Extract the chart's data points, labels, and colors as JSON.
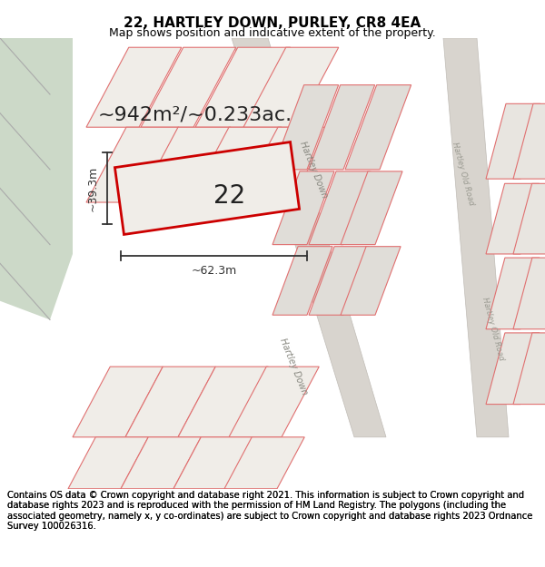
{
  "title": "22, HARTLEY DOWN, PURLEY, CR8 4EA",
  "subtitle": "Map shows position and indicative extent of the property.",
  "footer": "Contains OS data © Crown copyright and database right 2021. This information is subject to Crown copyright and database rights 2023 and is reproduced with the permission of HM Land Registry. The polygons (including the associated geometry, namely x, y co-ordinates) are subject to Crown copyright and database rights 2023 Ordnance Survey 100026316.",
  "area_label": "~942m²/~0.233ac.",
  "width_label": "~62.3m",
  "height_label": "~39.3m",
  "plot_number": "22",
  "map_bg": "#f0ede8",
  "plot_line_color": "#cc0000",
  "parcel_line_color": "#e07070",
  "green_color": "#ccd9c8",
  "road_fill": "#d8d4ce",
  "road_edge": "#c0bcb6",
  "dim_line_color": "#333333",
  "text_color": "#222222",
  "title_fontsize": 11,
  "subtitle_fontsize": 9,
  "footer_fontsize": 7.2,
  "area_fontsize": 16,
  "plot_num_fontsize": 20,
  "dim_fontsize": 9
}
